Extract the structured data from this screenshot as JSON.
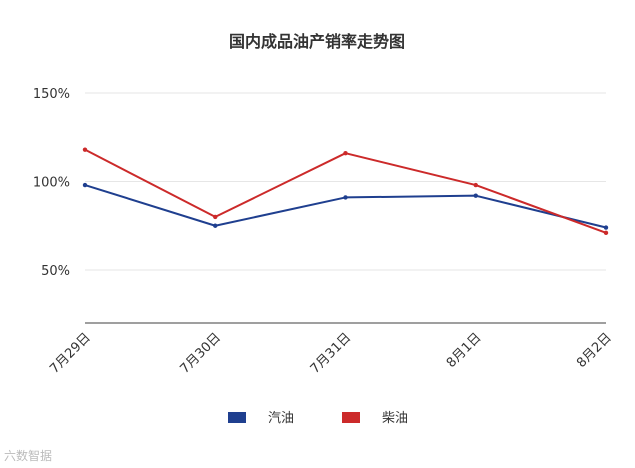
{
  "watermark": "六数智据",
  "chart_data": {
    "type": "line",
    "title": "国内成品油产销率走势图",
    "categories": [
      "7月29日",
      "7月30日",
      "7月31日",
      "8月1日",
      "8月2日"
    ],
    "series": [
      {
        "name": "汽油",
        "color": "#1f3f8f",
        "values": [
          98,
          75,
          91,
          92,
          74
        ]
      },
      {
        "name": "柴油",
        "color": "#cc2a2a",
        "values": [
          118,
          80,
          116,
          98,
          71
        ]
      }
    ],
    "y_ticks": [
      "50%",
      "100%",
      "150%"
    ],
    "ylim": [
      20,
      150
    ],
    "legend": "bottom",
    "grid": true
  }
}
